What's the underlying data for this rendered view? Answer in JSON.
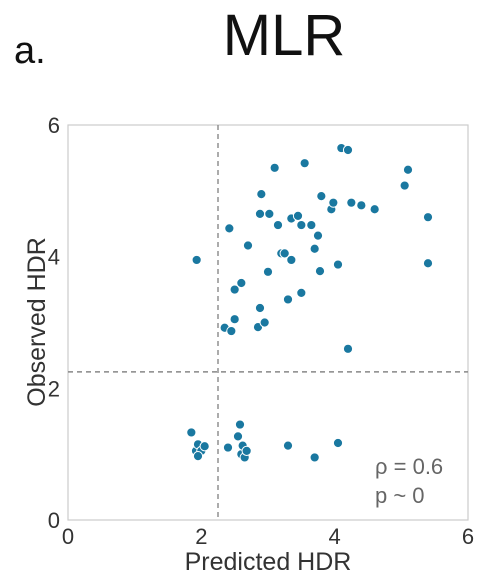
{
  "panel_label": "a.",
  "chart_data": {
    "type": "scatter",
    "title": "MLR",
    "xlabel": "Predicted HDR",
    "ylabel": "Observed HDR",
    "xlim": [
      0,
      6
    ],
    "ylim": [
      0,
      6
    ],
    "xticks": [
      "0",
      "2",
      "4",
      "6"
    ],
    "yticks": [
      "0",
      "2",
      "4",
      "6"
    ],
    "grid": false,
    "reference_lines": {
      "x": 2.25,
      "y": 2.25
    },
    "annotation": {
      "rho": "ρ = 0.6",
      "p": "p ~ 0"
    },
    "marker_color": "#1a78a0",
    "points": [
      [
        1.85,
        1.33
      ],
      [
        1.92,
        1.05
      ],
      [
        1.95,
        1.15
      ],
      [
        2.0,
        1.05
      ],
      [
        1.95,
        0.97
      ],
      [
        2.05,
        1.12
      ],
      [
        2.4,
        1.1
      ],
      [
        2.55,
        1.27
      ],
      [
        2.58,
        1.45
      ],
      [
        2.6,
        1.0
      ],
      [
        2.62,
        1.13
      ],
      [
        2.65,
        0.95
      ],
      [
        2.68,
        1.05
      ],
      [
        3.3,
        1.13
      ],
      [
        3.7,
        0.95
      ],
      [
        4.05,
        1.17
      ],
      [
        1.93,
        3.95
      ],
      [
        2.35,
        2.92
      ],
      [
        2.45,
        2.87
      ],
      [
        2.5,
        3.05
      ],
      [
        2.5,
        3.5
      ],
      [
        2.6,
        3.6
      ],
      [
        2.42,
        4.43
      ],
      [
        2.7,
        4.17
      ],
      [
        2.85,
        2.93
      ],
      [
        2.88,
        3.22
      ],
      [
        2.95,
        3.0
      ],
      [
        3.0,
        3.77
      ],
      [
        2.88,
        4.65
      ],
      [
        2.9,
        4.95
      ],
      [
        3.02,
        4.65
      ],
      [
        3.1,
        5.35
      ],
      [
        3.15,
        4.48
      ],
      [
        3.2,
        4.05
      ],
      [
        3.25,
        4.05
      ],
      [
        3.3,
        3.35
      ],
      [
        3.35,
        3.95
      ],
      [
        3.35,
        4.58
      ],
      [
        3.45,
        4.62
      ],
      [
        3.5,
        4.48
      ],
      [
        3.5,
        3.45
      ],
      [
        3.55,
        5.42
      ],
      [
        3.65,
        4.48
      ],
      [
        3.7,
        4.12
      ],
      [
        3.75,
        4.32
      ],
      [
        3.78,
        3.78
      ],
      [
        3.8,
        4.92
      ],
      [
        3.95,
        4.72
      ],
      [
        3.98,
        4.82
      ],
      [
        4.05,
        3.88
      ],
      [
        4.1,
        5.65
      ],
      [
        4.2,
        5.62
      ],
      [
        4.25,
        4.82
      ],
      [
        4.4,
        4.78
      ],
      [
        4.2,
        2.6
      ],
      [
        4.6,
        4.72
      ],
      [
        5.05,
        5.08
      ],
      [
        5.1,
        5.32
      ],
      [
        5.4,
        4.6
      ],
      [
        5.4,
        3.9
      ]
    ]
  }
}
